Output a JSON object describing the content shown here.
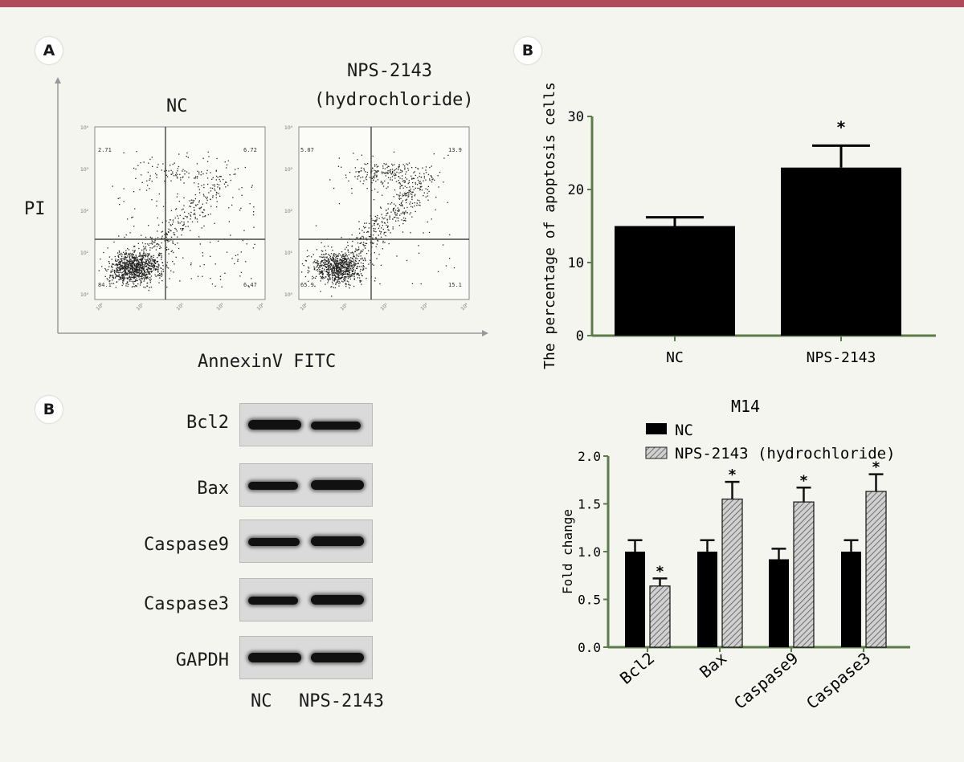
{
  "panels": {
    "A_label": "A",
    "B_label_top": "B",
    "B_label_blot": "B"
  },
  "flow": {
    "y_axis_label": "PI",
    "x_axis_label": "AnnexinV FITC",
    "plots": [
      {
        "title": "NC",
        "quadrants": {
          "Q1": "2.71",
          "Q2": "6.72",
          "Q3": "6.47",
          "Q4": "84.1"
        }
      },
      {
        "title_line1": "NPS-2143",
        "title_line2": "(hydrochloride)",
        "quadrants": {
          "Q1": "5.07",
          "Q2": "13.9",
          "Q3": "15.1",
          "Q4": "65.9"
        }
      }
    ]
  },
  "chart_data": [
    {
      "type": "bar",
      "title": "",
      "ylabel": "The percentage of apoptosis cells",
      "xlabel": "",
      "categories": [
        "NC",
        "NPS-2143"
      ],
      "values": [
        15,
        23
      ],
      "errors": [
        1.2,
        3.0
      ],
      "significance": [
        "",
        "*"
      ],
      "ylim": [
        0,
        30
      ],
      "yticks": [
        "0",
        "10",
        "20",
        "30"
      ],
      "colors": {
        "bar": "#000000",
        "axis": "#5d7a4a"
      }
    },
    {
      "type": "bar",
      "title": "M14",
      "ylabel": "Fold change",
      "xlabel": "",
      "categories": [
        "Bcl2",
        "Bax",
        "Caspase9",
        "Caspase3"
      ],
      "series": [
        {
          "name": "NC",
          "values": [
            1.0,
            1.0,
            0.92,
            1.0
          ],
          "errors": [
            0.12,
            0.12,
            0.11,
            0.12
          ],
          "significance": [
            "",
            "",
            "",
            ""
          ]
        },
        {
          "name": "NPS-2143 (hydrochloride)",
          "values": [
            0.64,
            1.55,
            1.52,
            1.63
          ],
          "errors": [
            0.08,
            0.18,
            0.15,
            0.18
          ],
          "significance": [
            "*",
            "*",
            "*",
            "*"
          ]
        }
      ],
      "ylim": [
        0,
        2.0
      ],
      "yticks": [
        "0.0",
        "0.5",
        "1.0",
        "1.5",
        "2.0"
      ],
      "legend_position": "top",
      "colors": {
        "nc": "#000000",
        "nps_fill": "#c8c8c8",
        "axis": "#5d7a4a"
      }
    }
  ],
  "western": {
    "proteins": [
      "Bcl2",
      "Bax",
      "Caspase9",
      "Caspase3",
      "GAPDH"
    ],
    "lanes": [
      "NC",
      "NPS-2143"
    ]
  }
}
